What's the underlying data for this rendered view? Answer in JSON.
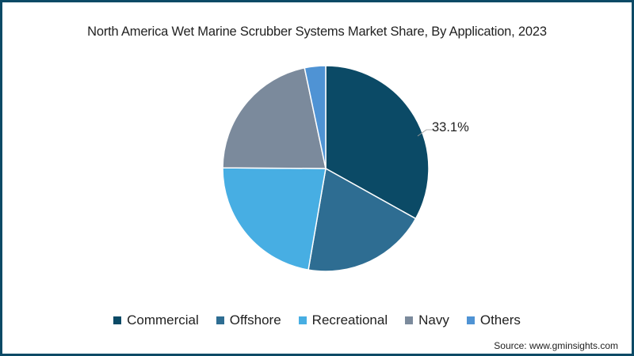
{
  "chart_data": {
    "type": "pie",
    "title": "North America Wet Marine Scrubber Systems Market Share, By Application, 2023",
    "categories": [
      "Commercial",
      "Offshore",
      "Recreational",
      "Navy",
      "Others"
    ],
    "values": [
      33.1,
      19.6,
      22.4,
      21.6,
      3.3
    ],
    "colors": [
      "#0b4a66",
      "#2e6d92",
      "#47aee3",
      "#7b8a9c",
      "#4f93d4"
    ],
    "annotations": [
      {
        "category": "Commercial",
        "text": "33.1%"
      }
    ],
    "legend_position": "bottom",
    "start_angle_deg": 0,
    "direction": "clockwise"
  },
  "header": {
    "title": "North America Wet Marine Scrubber Systems Market Share, By Application, 2023"
  },
  "labels": {
    "commercial_pct": "33.1%"
  },
  "legend": {
    "items": [
      {
        "label": "Commercial",
        "color": "#0b4a66"
      },
      {
        "label": "Offshore",
        "color": "#2e6d92"
      },
      {
        "label": "Recreational",
        "color": "#47aee3"
      },
      {
        "label": "Navy",
        "color": "#7b8a9c"
      },
      {
        "label": "Others",
        "color": "#4f93d4"
      }
    ]
  },
  "footer": {
    "source": "Source: www.gminsights.com"
  }
}
